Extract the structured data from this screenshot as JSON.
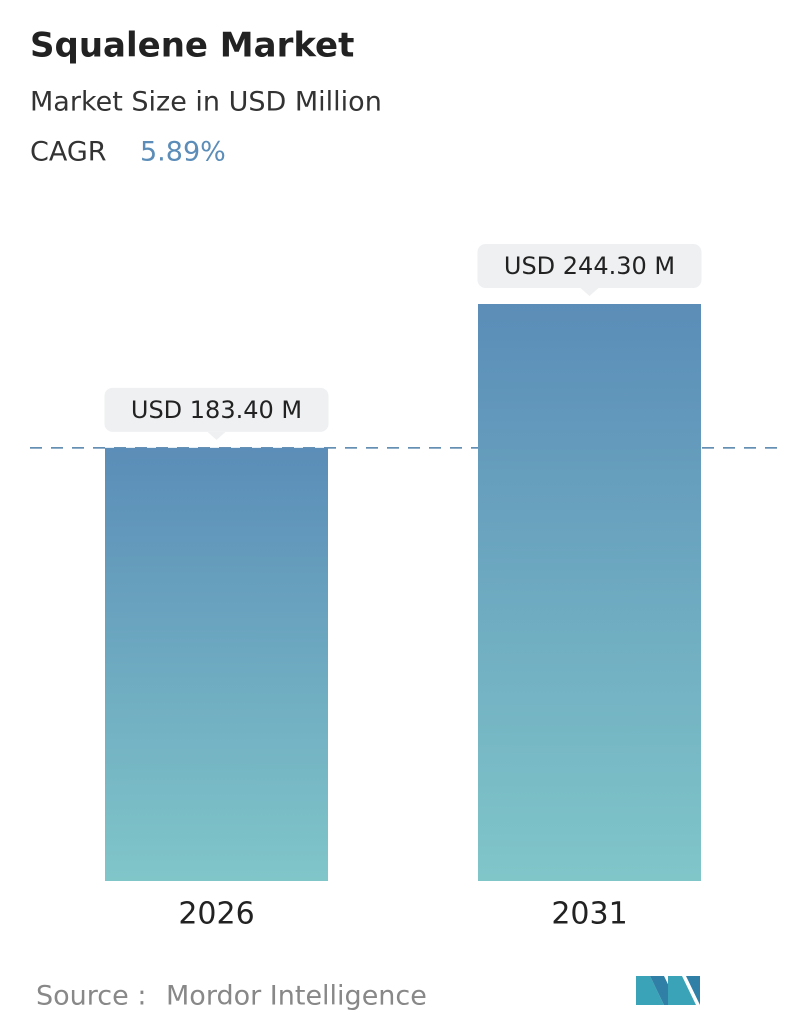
{
  "chart_data": {
    "type": "bar",
    "title": "Squalene Market",
    "subtitle": "Market Size in USD Million",
    "cagr_label": "CAGR",
    "cagr": "5.89%",
    "categories": [
      "2026",
      "2031"
    ],
    "values": [
      183.4,
      244.3
    ],
    "value_labels": [
      "USD 183.40 M",
      "USD 244.30 M"
    ],
    "colors": [
      "#5b8db8",
      "#80c6c9"
    ],
    "source_label": "Source :",
    "source": "Mordor Intelligence"
  }
}
